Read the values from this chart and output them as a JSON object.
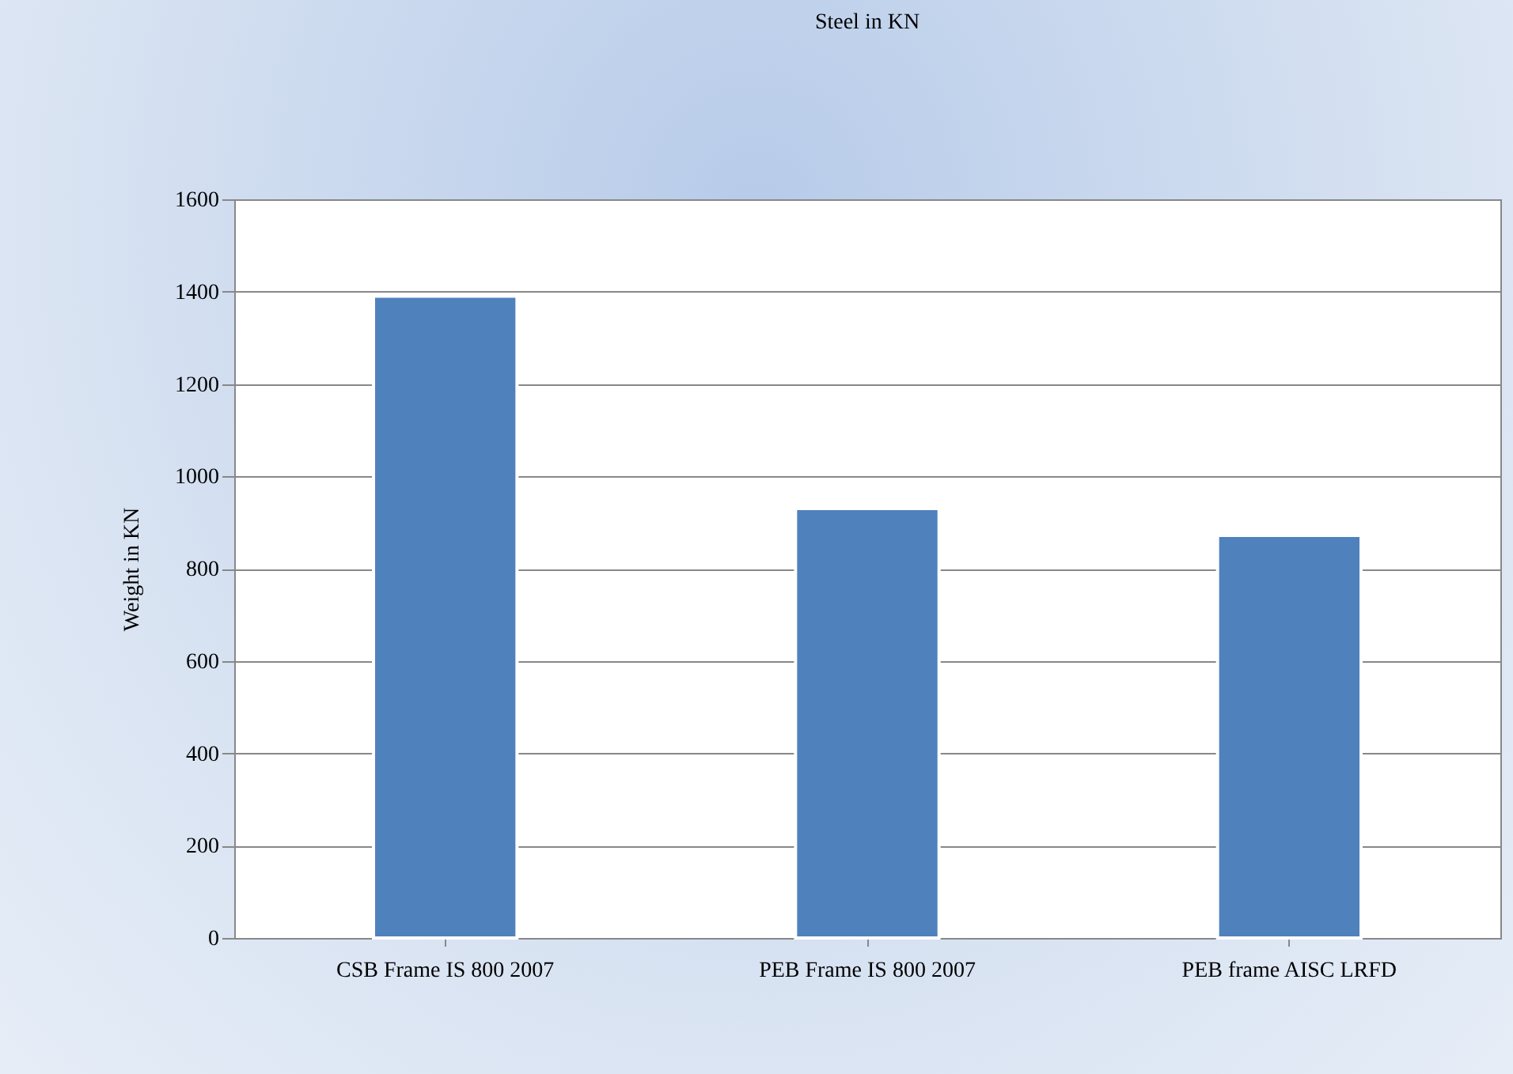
{
  "chart_data": {
    "type": "bar",
    "title": "Steel in KN",
    "ylabel": "Weight in KN",
    "categories": [
      "CSB Frame IS 800 2007",
      "PEB Frame  IS 800 2007",
      "PEB frame AISC LRFD"
    ],
    "values": [
      1390,
      930,
      872
    ],
    "color": "#4f81bd",
    "ylim": [
      0,
      1600
    ],
    "yticks": [
      0,
      200,
      400,
      600,
      800,
      1000,
      1200,
      1400,
      1600
    ],
    "grid": "y"
  }
}
